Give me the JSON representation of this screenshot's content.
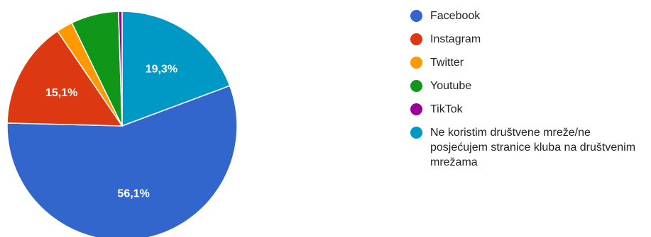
{
  "chart_data": {
    "type": "pie",
    "start_angle_deg": 90,
    "direction": "clockwise",
    "slices": [
      {
        "name": "Ne koristim društvene mreže/ne posjećujem stranice kluba na društvenim mrežama",
        "value": 19.3,
        "label": "19,3%",
        "color": "#0099c6"
      },
      {
        "name": "Facebook",
        "value": 56.1,
        "label": "56,1%",
        "color": "#3366cc"
      },
      {
        "name": "Instagram",
        "value": 15.1,
        "label": "15,1%",
        "color": "#dc3912"
      },
      {
        "name": "Twitter",
        "value": 2.3,
        "label": "",
        "color": "#ff9900"
      },
      {
        "name": "Youtube",
        "value": 6.7,
        "label": "",
        "color": "#109618"
      },
      {
        "name": "TikTok",
        "value": 0.5,
        "label": "",
        "color": "#990099"
      }
    ],
    "legend": {
      "position": "right",
      "items": [
        {
          "label": "Facebook",
          "color": "#3366cc"
        },
        {
          "label": "Instagram",
          "color": "#dc3912"
        },
        {
          "label": "Twitter",
          "color": "#ff9900"
        },
        {
          "label": "Youtube",
          "color": "#109618"
        },
        {
          "label": "TikTok",
          "color": "#990099"
        },
        {
          "label": "Ne koristim društvene mreže/ne posjećujem stranice kluba na društvenim mrežama",
          "color": "#0099c6"
        }
      ]
    }
  }
}
